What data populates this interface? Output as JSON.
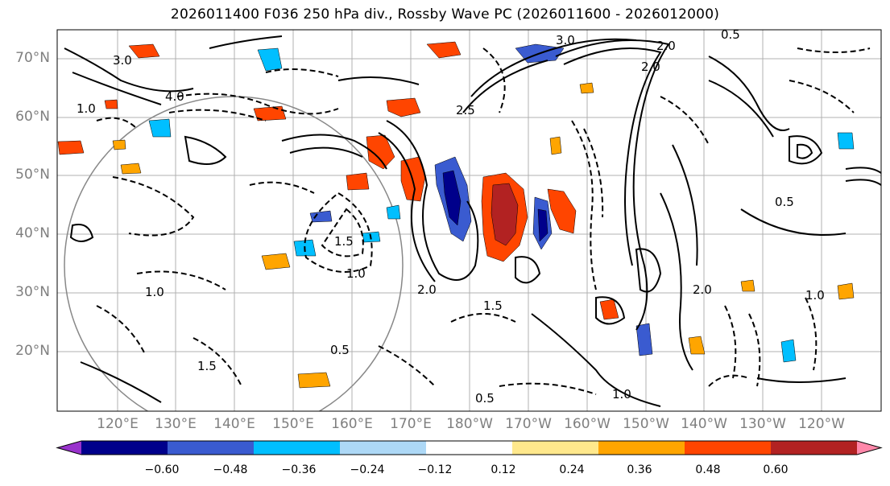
{
  "title": "2026011400 F036 250 hPa div., Rossby Wave PC (2026011600 - 2026012000)",
  "lat_labels": [
    "70°N",
    "60°N",
    "50°N",
    "40°N",
    "30°N",
    "20°N"
  ],
  "lon_labels": [
    "120°E",
    "130°E",
    "140°E",
    "150°E",
    "160°E",
    "170°E",
    "180°W",
    "170°W",
    "160°W",
    "150°W",
    "140°W",
    "130°W",
    "120°W"
  ],
  "colorbar": {
    "labels": [
      "−0.60",
      "−0.48",
      "−0.36",
      "−0.24",
      "−0.12",
      "0.12",
      "0.24",
      "0.36",
      "0.48",
      "0.60"
    ],
    "colors": [
      "#9932cc",
      "#00008b",
      "#3a5bd0",
      "#00bfff",
      "#add8f6",
      "#ffffff",
      "#ffe88c",
      "#ffa500",
      "#ff4500",
      "#b22222",
      "#ff88aa"
    ]
  },
  "contour_labels": [
    "3.0",
    "2.0",
    "1.5",
    "1.0",
    "0.5",
    "4.0",
    "2.5",
    "3.0",
    "2.0",
    "1.0",
    "0.5",
    "1.5",
    "2.0",
    "1.0",
    "0.5",
    "1.0",
    "1.5",
    "2.0",
    "0.5",
    "1.0"
  ]
}
